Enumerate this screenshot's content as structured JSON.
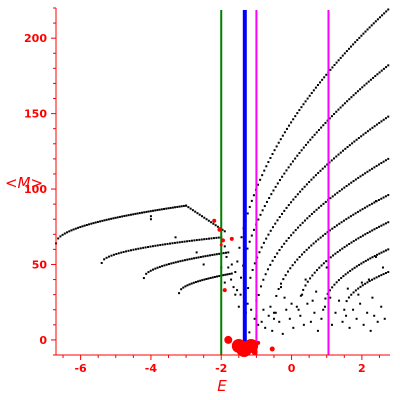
{
  "chart_data": {
    "type": "scatter",
    "xlabel": "E",
    "ylabel": "<M>",
    "xlim": [
      -6.7,
      2.8
    ],
    "ylim": [
      -10,
      220
    ],
    "x_ticks": [
      "-6",
      "-4",
      "-2",
      "0",
      "2"
    ],
    "x_tick_values": [
      -6,
      -4,
      -2,
      0,
      2
    ],
    "y_ticks": [
      "0",
      "50",
      "100",
      "150",
      "200"
    ],
    "y_tick_values": [
      0,
      50,
      100,
      150,
      200
    ],
    "grid": false,
    "colors": {
      "axes": "#ff0000",
      "points": "#000000",
      "highlight": "#ff0000",
      "green_line": "#008000",
      "blue_line": "#0000ff",
      "magenta_line": "#ff00ff"
    },
    "vertical_lines": [
      {
        "x": -2.0,
        "color": "#008000",
        "width": 2
      },
      {
        "x": -1.33,
        "color": "#0000ff",
        "width": 4
      },
      {
        "x": -1.0,
        "color": "#ff00ff",
        "width": 2
      },
      {
        "x": 1.05,
        "color": "#ff00ff",
        "width": 2
      }
    ],
    "curves": [
      {
        "x_start": -6.7,
        "x_end": -3.0,
        "y_start": 64,
        "y_end": 89,
        "shape": "sqrt",
        "n": 60
      },
      {
        "x_start": -3.0,
        "x_end": -1.9,
        "y_start": 89,
        "y_end": 72,
        "shape": "linear",
        "n": 18
      },
      {
        "x_start": -5.4,
        "x_end": -2.0,
        "y_start": 51,
        "y_end": 68,
        "shape": "sqrt",
        "n": 50
      },
      {
        "x_start": -4.2,
        "x_end": -1.8,
        "y_start": 41,
        "y_end": 58,
        "shape": "sqrt",
        "n": 38
      },
      {
        "x_start": -3.2,
        "x_end": -1.7,
        "y_start": 31,
        "y_end": 44,
        "shape": "sqrt",
        "n": 26
      },
      {
        "x_start": -1.6,
        "x_end": 2.75,
        "y_start": 30,
        "y_end": 219,
        "shape": "sqrt",
        "n": 75
      },
      {
        "x_start": -1.5,
        "x_end": 2.75,
        "y_start": 22,
        "y_end": 182,
        "shape": "sqrt",
        "n": 70
      },
      {
        "x_start": -1.3,
        "x_end": 2.75,
        "y_start": 18,
        "y_end": 148,
        "shape": "sqrt",
        "n": 64
      },
      {
        "x_start": -1.0,
        "x_end": 2.75,
        "y_start": 16,
        "y_end": 120,
        "shape": "sqrt",
        "n": 58
      },
      {
        "x_start": -0.5,
        "x_end": 2.75,
        "y_start": 18,
        "y_end": 96,
        "shape": "sqrt",
        "n": 50
      },
      {
        "x_start": 0.2,
        "x_end": 2.75,
        "y_start": 20,
        "y_end": 78,
        "shape": "sqrt",
        "n": 40
      },
      {
        "x_start": 0.9,
        "x_end": 2.75,
        "y_start": 20,
        "y_end": 60,
        "shape": "sqrt",
        "n": 30
      },
      {
        "x_start": 1.5,
        "x_end": 2.75,
        "y_start": 20,
        "y_end": 45,
        "shape": "sqrt",
        "n": 20
      }
    ],
    "scatter_points": [
      [
        -1.9,
        62
      ],
      [
        -1.85,
        55
      ],
      [
        -1.8,
        48
      ],
      [
        -1.72,
        40
      ],
      [
        -1.65,
        35
      ],
      [
        -1.55,
        33
      ],
      [
        -1.45,
        30
      ],
      [
        -1.35,
        28
      ],
      [
        -1.25,
        24
      ],
      [
        -1.15,
        20
      ],
      [
        -1.05,
        14
      ],
      [
        -0.95,
        10
      ],
      [
        -0.85,
        12
      ],
      [
        -0.75,
        8
      ],
      [
        -0.65,
        16
      ],
      [
        -0.55,
        6
      ],
      [
        -0.45,
        18
      ],
      [
        -0.35,
        12
      ],
      [
        -0.25,
        4
      ],
      [
        -0.15,
        20
      ],
      [
        -0.05,
        14
      ],
      [
        0.05,
        8
      ],
      [
        0.15,
        22
      ],
      [
        0.25,
        16
      ],
      [
        0.35,
        10
      ],
      [
        0.45,
        24
      ],
      [
        0.55,
        12
      ],
      [
        0.65,
        18
      ],
      [
        0.75,
        6
      ],
      [
        0.85,
        14
      ],
      [
        0.95,
        22
      ],
      [
        1.15,
        10
      ],
      [
        1.25,
        18
      ],
      [
        1.35,
        26
      ],
      [
        1.45,
        12
      ],
      [
        1.55,
        16
      ],
      [
        1.65,
        8
      ],
      [
        1.75,
        20
      ],
      [
        1.85,
        14
      ],
      [
        1.95,
        24
      ],
      [
        2.05,
        10
      ],
      [
        2.15,
        18
      ],
      [
        2.25,
        6
      ],
      [
        2.35,
        16
      ],
      [
        2.45,
        12
      ],
      [
        2.55,
        22
      ],
      [
        2.65,
        14
      ],
      [
        -1.2,
        5
      ],
      [
        -0.6,
        22
      ],
      [
        -0.2,
        28
      ],
      [
        0.3,
        30
      ],
      [
        0.6,
        26
      ],
      [
        1.1,
        28
      ],
      [
        1.9,
        30
      ],
      [
        2.3,
        28
      ],
      [
        -1.7,
        50
      ],
      [
        -1.6,
        45
      ],
      [
        -4.0,
        82
      ],
      [
        -3.3,
        68
      ],
      [
        -4.0,
        80
      ],
      [
        -2.7,
        58
      ],
      [
        -2.5,
        50
      ],
      [
        -2.0,
        48
      ],
      [
        -1.9,
        38
      ],
      [
        2.4,
        92
      ],
      [
        2.4,
        55
      ],
      [
        2.2,
        40
      ],
      [
        1.0,
        48
      ],
      [
        0.4,
        40
      ],
      [
        -0.3,
        35
      ],
      [
        -1.0,
        26
      ],
      [
        -0.8,
        20
      ],
      [
        -0.5,
        14
      ],
      [
        0.0,
        24
      ],
      [
        0.7,
        32
      ],
      [
        1.6,
        34
      ],
      [
        2.0,
        38
      ],
      [
        2.6,
        48
      ]
    ],
    "red_points": [
      {
        "x": -2.2,
        "y": 79,
        "r": 2
      },
      {
        "x": -2.05,
        "y": 73,
        "r": 2
      },
      {
        "x": -1.95,
        "y": 66,
        "r": 2
      },
      {
        "x": -1.7,
        "y": 67,
        "r": 2
      },
      {
        "x": -2.0,
        "y": 63,
        "r": 1.5
      },
      {
        "x": -1.9,
        "y": 33,
        "r": 2
      },
      {
        "x": -1.8,
        "y": 0,
        "r": 4
      },
      {
        "x": -1.5,
        "y": -4,
        "r": 7
      },
      {
        "x": -1.35,
        "y": -6,
        "r": 8
      },
      {
        "x": -1.15,
        "y": -4,
        "r": 7
      },
      {
        "x": -0.95,
        "y": -2,
        "r": 2
      },
      {
        "x": -0.55,
        "y": -6,
        "r": 2.5
      },
      {
        "x": -1.05,
        "y": -8,
        "r": 3
      }
    ]
  }
}
